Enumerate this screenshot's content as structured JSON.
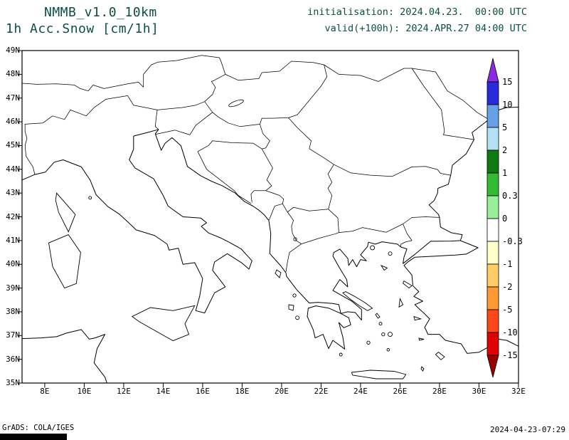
{
  "header": {
    "model": "NMMB_v1.0_10km",
    "product": "1h Acc.Snow [cm/1h]",
    "init_line": "initialisation: 2024.04.23.  00:00 UTC",
    "valid_line": "valid(+100h): 2024.APR.27 04:00 UTC"
  },
  "map": {
    "lat_labels": [
      "49N",
      "48N",
      "47N",
      "46N",
      "45N",
      "44N",
      "43N",
      "42N",
      "41N",
      "40N",
      "39N",
      "38N",
      "37N",
      "36N",
      "35N"
    ],
    "lon_labels": [
      "8E",
      "10E",
      "12E",
      "14E",
      "16E",
      "18E",
      "20E",
      "22E",
      "24E",
      "26E",
      "28E",
      "30E",
      "32E"
    ]
  },
  "colorbar": {
    "labels": [
      "15",
      "10",
      "5",
      "2",
      "1",
      "0.3",
      "0",
      "-0.3",
      "-1",
      "-2",
      "-5",
      "-10",
      "-15"
    ],
    "segment_colors": [
      "#2a2add",
      "#66a0e6",
      "#b3e0f2",
      "#0f7a0f",
      "#33bb33",
      "#99ee99",
      "#ffffff",
      "#ffffc9",
      "#ffcc66",
      "#ff9933",
      "#ff4719",
      "#e00000"
    ],
    "arrow_top_color": "#8a2be2",
    "arrow_bottom_color": "#990000"
  },
  "chart_data": {
    "type": "heatmap",
    "title": "1h Acc.Snow [cm/1h]",
    "lat_range": [
      "35N",
      "49N"
    ],
    "lon_range": [
      "8E",
      "32E"
    ],
    "colorbar_levels": [
      15,
      10,
      5,
      2,
      1,
      0.3,
      0,
      -0.3,
      -1,
      -2,
      -5,
      -10,
      -15
    ],
    "shaded_field": "no shaded snow accumulation visible on map (all zero)"
  },
  "footer": {
    "credit": "GrADS: COLA/IGES",
    "timestamp": "2024-04-23-07:29"
  },
  "colors": {
    "header_text": "#0b4f44",
    "map_line": "#000000",
    "background": "#ffffff"
  }
}
